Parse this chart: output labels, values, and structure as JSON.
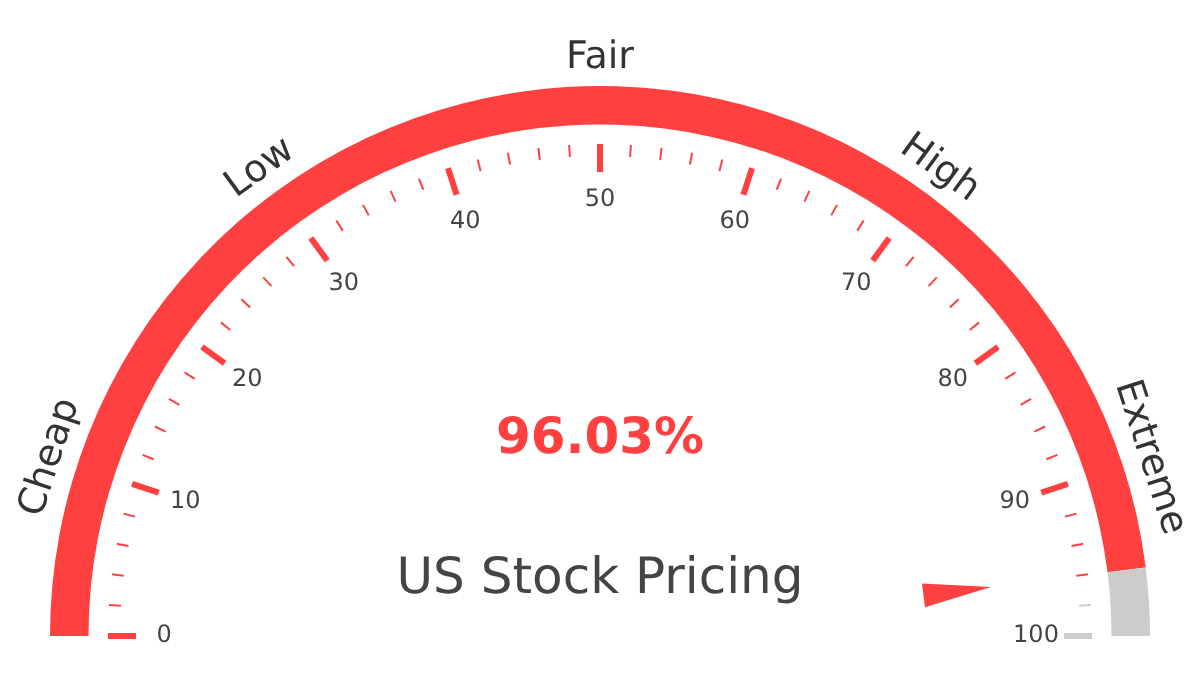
{
  "chart_data": {
    "type": "donut",
    "title": "US Stock Pricing",
    "categories": [
      null,
      null
    ],
    "values": [
      96.03,
      3.97
    ],
    "colors": [
      "#ff4040",
      "#cccccc"
    ],
    "value_labels": [
      "96.03%",
      null
    ],
    "annotations": [
      "Cheap",
      "Low",
      "Fair",
      "High",
      "Extreme",
      "0",
      "10",
      "20",
      "30",
      "40",
      "50",
      "60",
      "70",
      "80",
      "90",
      "100"
    ]
  }
}
